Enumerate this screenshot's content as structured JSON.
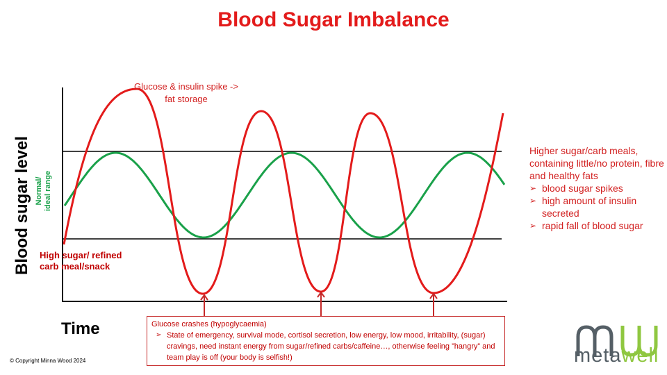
{
  "title": "Blood Sugar Imbalance",
  "y_axis_label": "Blood sugar level",
  "x_axis_label": "Time",
  "normal_range_label_line1": "Normal/",
  "normal_range_label_line2": "ideal range",
  "spike_label": "Glucose & insulin spike -> fat storage",
  "meal_label": "High sugar/ refined carb meal/snack",
  "right_text": {
    "intro": "Higher sugar/carb meals, containing little/no protein, fibre and healthy fats",
    "bullets": [
      "blood sugar spikes",
      "high amount of insulin secreted",
      "rapid fall of blood sugar"
    ]
  },
  "crash_box": {
    "heading": "Glucose crashes (hypoglycaemia)",
    "bullet": "State of emergency, survival mode, cortisol secretion, low energy, low mood, irritability, (sugar) cravings, need instant energy from sugar/refined carbs/caffeine…, otherwise feeling ”hangry” and team play is off (your body is selfish!)"
  },
  "copyright": "© Copyright Minna Wood 2024",
  "logo": {
    "part1": "meta",
    "part2": "well"
  },
  "colors": {
    "title": "#e31b1b",
    "red_curve": "#e31b1b",
    "green_curve": "#1aa14a",
    "text_red": "#d22020",
    "logo_grey": "#555f66",
    "logo_green": "#8fc740"
  },
  "icons": [
    "bullet-arrow-icon",
    "up-arrow-icon"
  ]
}
